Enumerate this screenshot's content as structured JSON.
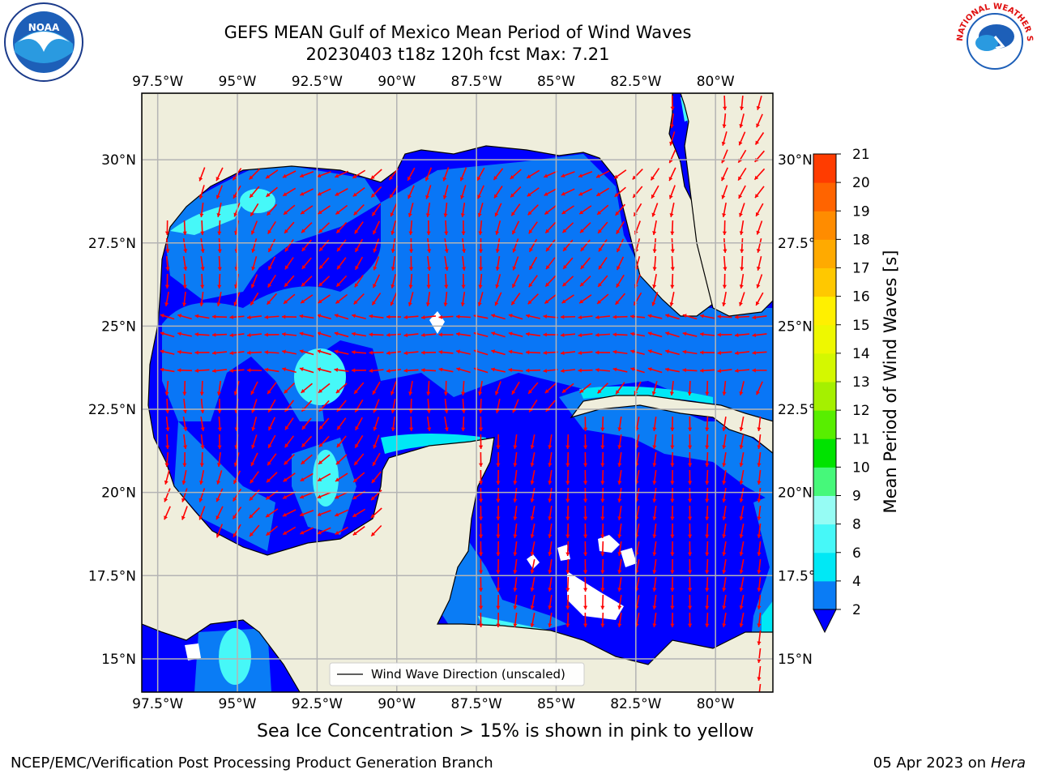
{
  "title": {
    "line1": "GEFS MEAN Gulf of Mexico Mean Period of Wind Waves",
    "line2": "20230403 t18z 120h fcst   Max: 7.21"
  },
  "map": {
    "lon_ticks": [
      "97.5°W",
      "95°W",
      "92.5°W",
      "90°W",
      "87.5°W",
      "85°W",
      "82.5°W",
      "80°W"
    ],
    "lat_ticks": [
      "15°N",
      "17.5°N",
      "20°N",
      "22.5°N",
      "25°N",
      "27.5°N",
      "30°N"
    ],
    "lon_range": [
      -98,
      -78.2
    ],
    "lat_range": [
      14,
      32
    ],
    "legend_label": "Wind Wave Direction (unscaled)",
    "land_color": "#efeedc",
    "arrow_color": "#ff0000"
  },
  "colorbar": {
    "label": "Mean Period of Wind Waves [s]",
    "ticks": [
      "2",
      "4",
      "6",
      "8",
      "9",
      "10",
      "11",
      "12",
      "13",
      "14",
      "15",
      "16",
      "17",
      "18",
      "19",
      "20",
      "21"
    ],
    "colors": [
      "#0a7cf5",
      "#00e8f5",
      "#46f8f8",
      "#96fcf4",
      "#46f87a",
      "#00e300",
      "#58ee00",
      "#a5f000",
      "#d4f800",
      "#eef800",
      "#fff000",
      "#ffc800",
      "#ffaa00",
      "#ff8c00",
      "#ff6400",
      "#ff3c00",
      "#ff0000"
    ],
    "extend_color": "#0000ff"
  },
  "captions": {
    "ice_note": "Sea Ice Concentration > 15% is shown in pink to yellow",
    "footer_left": "NCEP/EMC/Verification Post Processing Product Generation Branch",
    "footer_right_date": "05 Apr 2023 on ",
    "footer_right_machine": "Hera"
  },
  "logos": {
    "noaa_text": "NOAA",
    "nws_text": "NATIONAL WEATHER SERVICE"
  }
}
